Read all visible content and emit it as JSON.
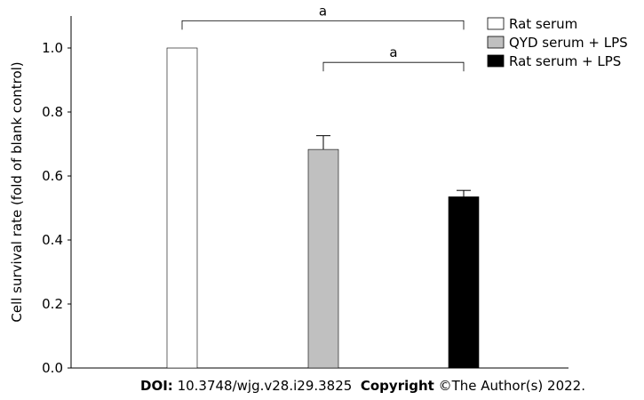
{
  "chart_data": {
    "type": "bar",
    "categories": [
      "Rat serum",
      "QYD serum + LPS",
      "Rat serum + LPS"
    ],
    "values": [
      1.0,
      0.683,
      0.535
    ],
    "errors": [
      0,
      0.043,
      0.02
    ],
    "colors": [
      "#ffffff",
      "#c0c0c0",
      "#000000"
    ],
    "ylabel": "Cell survival rate (fold of blank control)",
    "ylim": [
      0,
      1.1
    ],
    "yticks": [
      "0.0",
      "0.2",
      "0.4",
      "0.6",
      "0.8",
      "1.0"
    ],
    "legend": {
      "position": "top-right",
      "entries": [
        "Rat serum",
        "QYD serum + LPS",
        "Rat serum + LPS"
      ]
    },
    "annotations": [
      {
        "label": "a",
        "from": 0,
        "to": 2,
        "y": 1.085
      },
      {
        "label": "a",
        "from": 1,
        "to": 2,
        "y": 0.955
      }
    ],
    "grid": false
  },
  "footer": {
    "doi_label": "DOI:",
    "doi_value": " 10.3748/wjg.v28.i29.3825",
    "copyright_label": "Copyright",
    "copyright_value": " ©The Author(s) 2022."
  }
}
